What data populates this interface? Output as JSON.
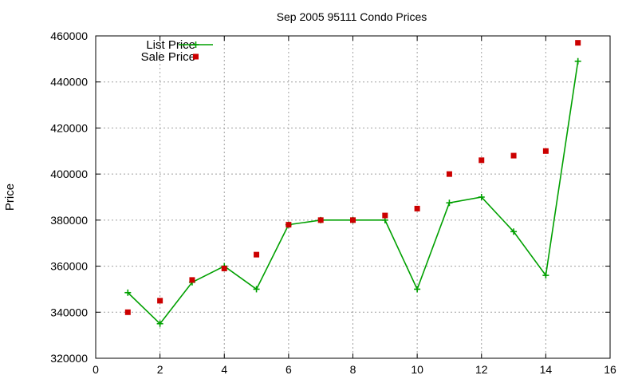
{
  "chart_data": {
    "type": "line",
    "title": "Sep 2005 95111 Condo Prices",
    "xlabel": "",
    "ylabel": "Price",
    "xlim": [
      0,
      16
    ],
    "ylim": [
      320000,
      460000
    ],
    "xticks": [
      0,
      2,
      4,
      6,
      8,
      10,
      12,
      14,
      16
    ],
    "yticks": [
      320000,
      340000,
      360000,
      380000,
      400000,
      420000,
      440000,
      460000
    ],
    "grid": true,
    "legend_position": "top-left",
    "series": [
      {
        "name": "List Price",
        "style": "line-with-plus-markers",
        "color": "#00a000",
        "x": [
          1,
          2,
          3,
          4,
          5,
          6,
          7,
          8,
          9,
          10,
          11,
          12,
          13,
          14,
          15
        ],
        "y": [
          348500,
          335000,
          353000,
          360000,
          350000,
          378000,
          380000,
          380000,
          380000,
          350000,
          387500,
          390000,
          375000,
          356000,
          449000
        ]
      },
      {
        "name": "Sale Price",
        "style": "square-markers",
        "color": "#cc0000",
        "x": [
          1,
          2,
          3,
          4,
          5,
          6,
          7,
          8,
          9,
          10,
          11,
          12,
          13,
          14,
          15
        ],
        "y": [
          340000,
          345000,
          354000,
          359000,
          365000,
          378000,
          380000,
          380000,
          382000,
          385000,
          400000,
          406000,
          408000,
          410000,
          457000
        ]
      }
    ]
  }
}
